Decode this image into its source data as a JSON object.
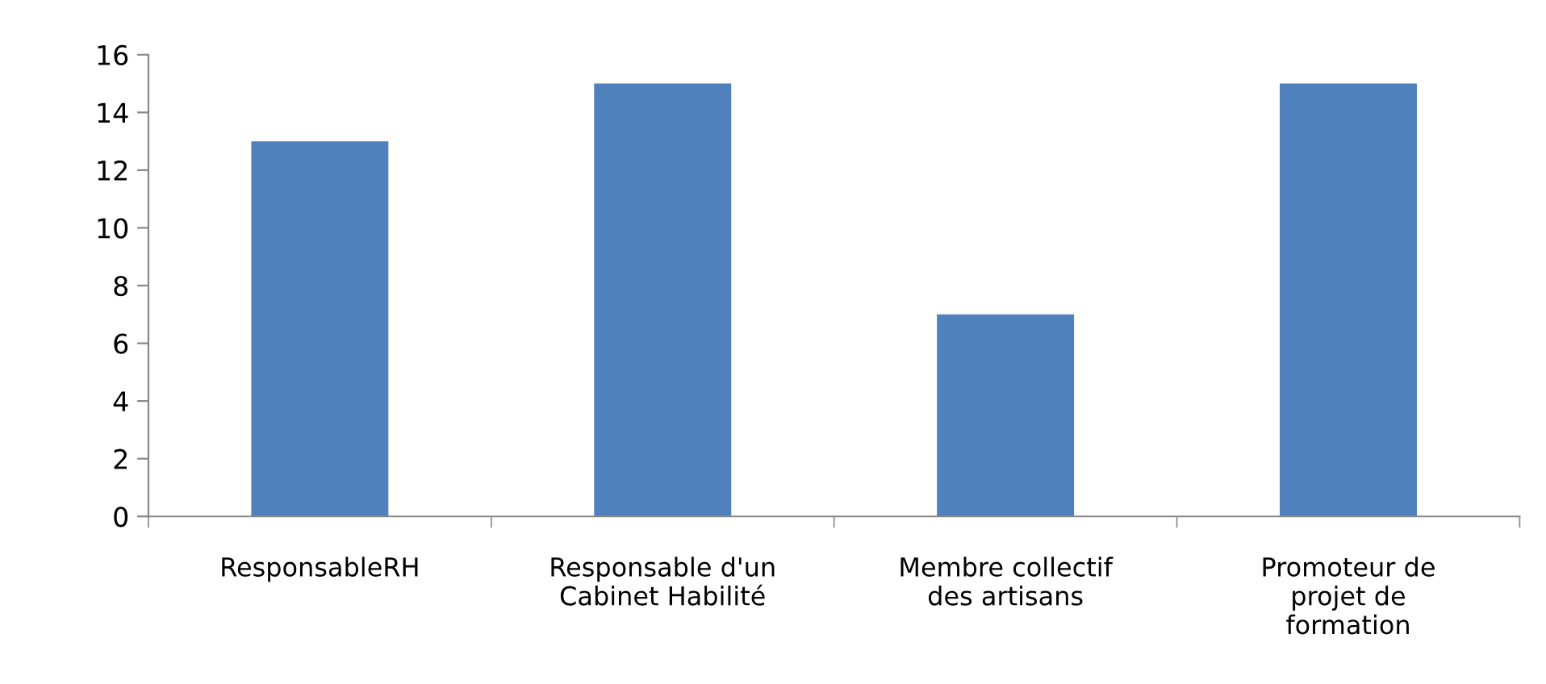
{
  "chart_data": {
    "type": "bar",
    "categories": [
      "ResponsableRH",
      "Responsable d'un\nCabinet Habilité",
      "Membre collectif\ndes artisans",
      "Promoteur de\nprojet de\nformation"
    ],
    "values": [
      13,
      15,
      7,
      15
    ],
    "color": "#4f81bd",
    "ylim": [
      0,
      16
    ],
    "yticks": [
      0,
      2,
      4,
      6,
      8,
      10,
      12,
      14,
      16
    ],
    "grid": false
  }
}
